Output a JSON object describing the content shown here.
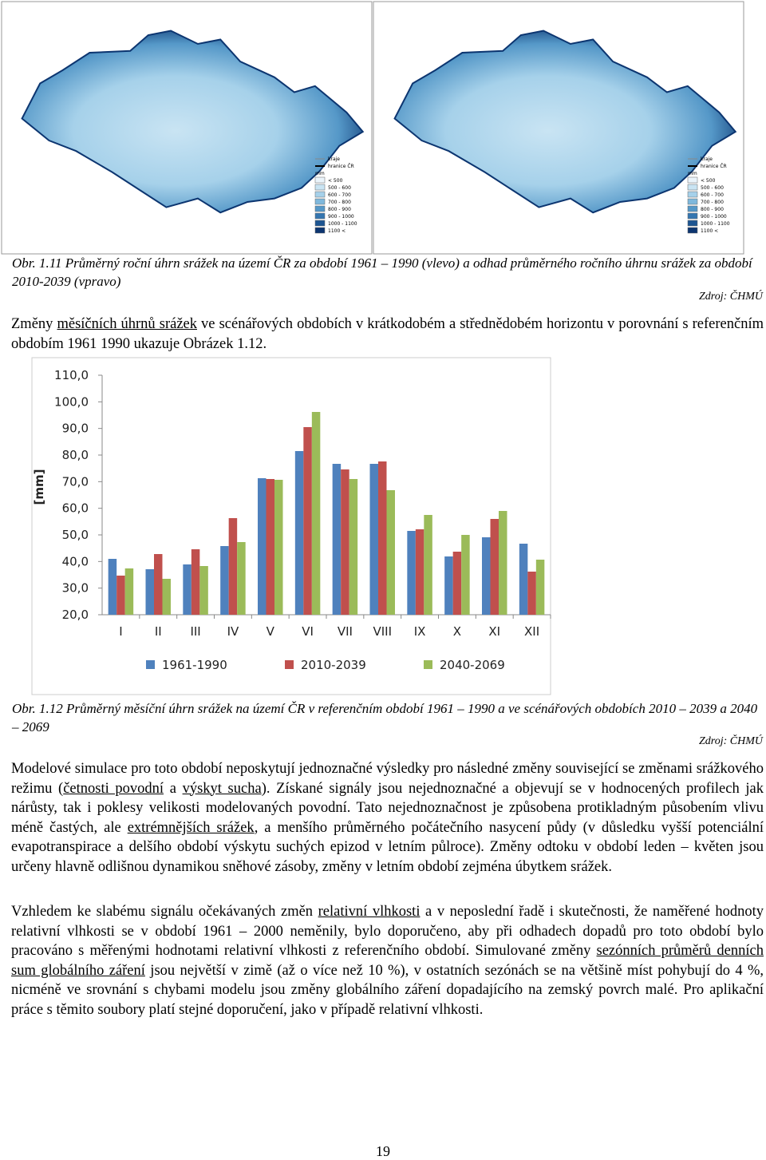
{
  "maps": {
    "legend": [
      "kraje",
      "hranice ČR",
      "mm",
      "< 500",
      "500 - 600",
      "600 - 700",
      "700 - 800",
      "800 - 900",
      "900 - 1000",
      "1000 - 1100",
      "1100 <"
    ],
    "colors": [
      "#eaf4fb",
      "#c9e4f3",
      "#a6d1ea",
      "#7fb8dc",
      "#5598c8",
      "#3576b0",
      "#1d5592",
      "#0c3570"
    ]
  },
  "caption1": {
    "label": "Obr. 1.11",
    "text": "Průměrný roční úhrn srážek na území ČR za období 1961 – 1990 (vlevo) a odhad průměrného ročního úhrnu srážek za období 2010-2039 (vpravo)",
    "source": "Zdroj: ČHMÚ"
  },
  "paragraph1": [
    {
      "text": "Změny "
    },
    {
      "text": "měsíčních úhrnů srážek",
      "underline": true
    },
    {
      "text": " ve scénářových obdobích v krátkodobém a střednědobém horizontu v porovnání s referenčním obdobím 1961 1990 ukazuje Obrázek 1.12."
    }
  ],
  "chart_data": {
    "type": "bar",
    "ylabel": "[mm]",
    "categories": [
      "I",
      "II",
      "III",
      "IV",
      "V",
      "VI",
      "VII",
      "VIII",
      "IX",
      "X",
      "XI",
      "XII"
    ],
    "series": [
      {
        "name": "1961-1990",
        "color": "#4f81bd",
        "values": [
          41.0,
          37.1,
          38.9,
          45.8,
          71.3,
          81.5,
          76.7,
          76.7,
          51.5,
          41.9,
          49.1,
          46.7
        ]
      },
      {
        "name": "2010-2039",
        "color": "#c0504d",
        "values": [
          34.7,
          42.8,
          44.6,
          56.3,
          71.0,
          90.5,
          74.6,
          77.6,
          52.1,
          43.7,
          56.0,
          36.2
        ]
      },
      {
        "name": "2040-2069",
        "color": "#9bbb59",
        "values": [
          37.4,
          33.5,
          38.3,
          47.3,
          70.7,
          96.2,
          71.0,
          66.8,
          57.5,
          50.0,
          59.0,
          40.7
        ]
      }
    ],
    "ylim": [
      20,
      110
    ],
    "yticks": [
      {
        "value": 20,
        "label": "20,0"
      },
      {
        "value": 30,
        "label": "30,0"
      },
      {
        "value": 40,
        "label": "40,0"
      },
      {
        "value": 50,
        "label": "50,0"
      },
      {
        "value": 60,
        "label": "60,0"
      },
      {
        "value": 70,
        "label": "70,0"
      },
      {
        "value": 80,
        "label": "80,0"
      },
      {
        "value": 90,
        "label": "90,0"
      },
      {
        "value": 100,
        "label": "100,0"
      },
      {
        "value": 110,
        "label": "110,0"
      }
    ],
    "grid": false,
    "legend": "bottom"
  },
  "caption2": {
    "label": "Obr. 1.12",
    "text": "Průměrný měsíční úhrn srážek na území ČR v referenčním období 1961 – 1990 a ve scénářových obdobích 2010 – 2039 a 2040 – 2069",
    "source": "Zdroj: ČHMÚ"
  },
  "paragraph2": [
    {
      "text": "Modelové simulace pro toto období neposkytují jednoznačné výsledky pro následné změny související se změnami srážkového režimu ("
    },
    {
      "text": "četnosti povodní",
      "underline": true
    },
    {
      "text": " a "
    },
    {
      "text": "výskyt sucha",
      "underline": true
    },
    {
      "text": "). Získané signály jsou nejednoznačné a objevují se v hodnocených profilech jak nárůsty, tak i poklesy velikosti modelovaných povodní. Tato nejednoznačnost je způsobena protikladným působením vlivu méně častých, ale "
    },
    {
      "text": "extrémnějších srážek",
      "underline": true
    },
    {
      "text": ", a menšího průměrného počátečního nasycení půdy (v důsledku vyšší potenciální evapotranspirace a delšího období výskytu suchých epizod v letním půlroce). Změny odtoku v období leden – květen jsou určeny hlavně odlišnou dynamikou sněhové zásoby, změny v letním období zejména úbytkem srážek."
    }
  ],
  "paragraph3": [
    {
      "text": "Vzhledem ke slabému signálu očekávaných změn "
    },
    {
      "text": "relativní vlhkosti",
      "underline": true
    },
    {
      "text": " a v neposlední řadě i skutečnosti, že naměřené hodnoty relativní vlhkosti se v období 1961 – 2000 neměnily, bylo doporučeno, aby při odhadech dopadů pro toto období bylo pracováno s měřenými hodnotami relativní vlhkosti z referenčního období. Simulované změny "
    },
    {
      "text": "sezónních průměrů denních sum globálního záření",
      "underline": true
    },
    {
      "text": " jsou největší v zimě (až o více než 10 %), v ostatních sezónách se na většině míst pohybují do 4 %, nicméně ve srovnání s chybami modelu jsou změny globálního záření dopadajícího na zemský povrch malé. Pro aplikační práce s těmito soubory platí stejné doporučení, jako v případě relativní vlhkosti."
    }
  ],
  "page_number": "19"
}
